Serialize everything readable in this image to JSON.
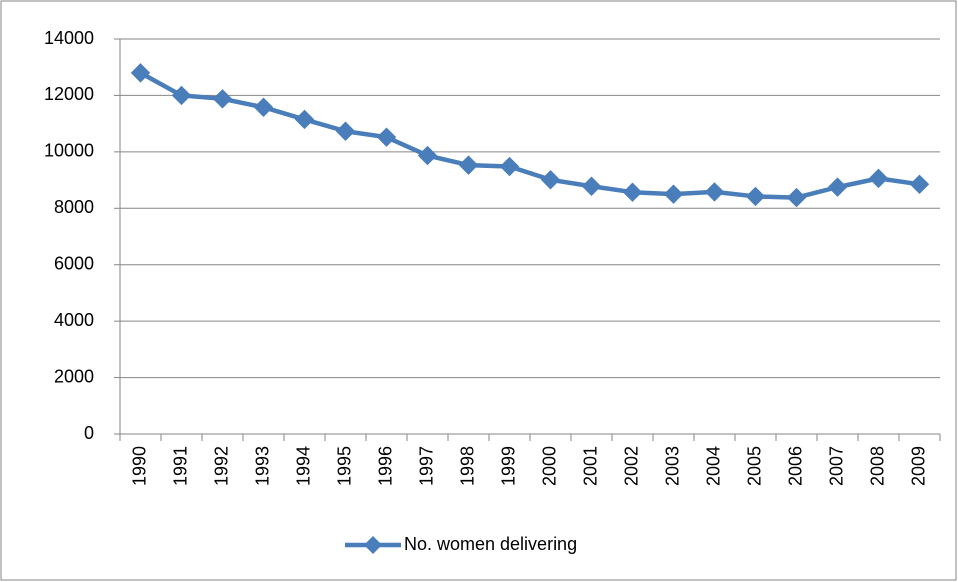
{
  "chart_data": {
    "type": "line",
    "categories": [
      "1990",
      "1991",
      "1992",
      "1993",
      "1994",
      "1995",
      "1996",
      "1997",
      "1998",
      "1999",
      "2000",
      "2001",
      "2002",
      "2003",
      "2004",
      "2005",
      "2006",
      "2007",
      "2008",
      "2009"
    ],
    "series": [
      {
        "name": "No. women delivering",
        "color": "#4a7ebb",
        "values": [
          12800,
          12000,
          11880,
          11580,
          11150,
          10730,
          10520,
          9870,
          9530,
          9480,
          9010,
          8780,
          8570,
          8500,
          8580,
          8420,
          8380,
          8750,
          9060,
          8850
        ]
      }
    ],
    "ylim": [
      0,
      14000
    ],
    "yticks": [
      0,
      2000,
      4000,
      6000,
      8000,
      10000,
      12000,
      14000
    ],
    "grid": true,
    "legend": "bottom"
  }
}
